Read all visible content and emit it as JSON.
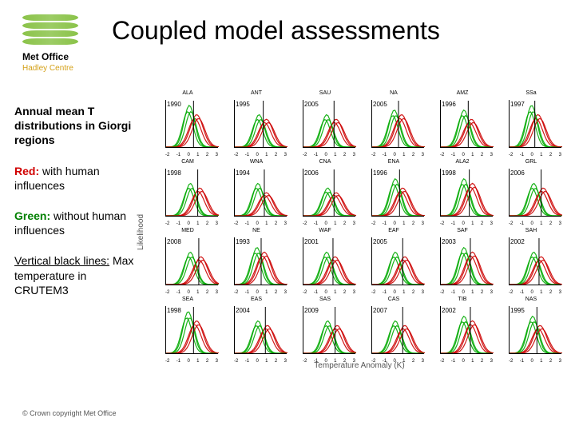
{
  "title": "Coupled model assessments",
  "logo": {
    "name": "Met Office",
    "subtitle": "Hadley Centre"
  },
  "sidebar": {
    "desc": "Annual mean T distributions in Giorgi regions",
    "red_label": "Red:",
    "red_text": " with human influences",
    "green_label": "Green:",
    "green_text": " without human influences",
    "vline_label": "Vertical black lines:",
    "vline_text": " Max temperature in CRUTEM3"
  },
  "copyright": "© Crown copyright   Met Office",
  "axes": {
    "xlabel": "Temperature Anomaly (K)",
    "ylabel": "Likelihood",
    "xticks": [
      "-2",
      "-1",
      "0",
      "1",
      "2",
      "3"
    ]
  },
  "style": {
    "red": "#cc0000",
    "green": "#00aa00",
    "vline": "#000000",
    "curve_opacity": 0.9,
    "panel_bg": "#ffffff"
  },
  "panels": [
    {
      "name": "ALA",
      "year": "1990",
      "red_mu": 0.9,
      "red_h": 0.7,
      "green_mu": 0.2,
      "green_h": 0.9,
      "vline": 0.6
    },
    {
      "name": "ANT",
      "year": "1995",
      "red_mu": 1.0,
      "red_h": 0.6,
      "green_mu": 0.3,
      "green_h": 0.7,
      "vline": 0.7
    },
    {
      "name": "SAU",
      "year": "2005",
      "red_mu": 1.1,
      "red_h": 0.6,
      "green_mu": 0.2,
      "green_h": 0.7,
      "vline": 0.9
    },
    {
      "name": "NA",
      "year": "2005",
      "red_mu": 0.8,
      "red_h": 0.7,
      "green_mu": 0.1,
      "green_h": 0.8,
      "vline": 0.5
    },
    {
      "name": "AMZ",
      "year": "1996",
      "red_mu": 0.9,
      "red_h": 0.6,
      "green_mu": 0.2,
      "green_h": 0.8,
      "vline": 0.6
    },
    {
      "name": "SSa",
      "year": "1997",
      "red_mu": 0.7,
      "red_h": 0.7,
      "green_mu": 0.1,
      "green_h": 0.9,
      "vline": 0.4
    },
    {
      "name": "CAM",
      "year": "1998",
      "red_mu": 1.2,
      "red_h": 0.6,
      "green_mu": 0.3,
      "green_h": 0.7,
      "vline": 1.0
    },
    {
      "name": "WNA",
      "year": "1994",
      "red_mu": 1.0,
      "red_h": 0.5,
      "green_mu": 0.2,
      "green_h": 0.7,
      "vline": 0.8
    },
    {
      "name": "CNA",
      "year": "2006",
      "red_mu": 1.1,
      "red_h": 0.5,
      "green_mu": 0.3,
      "green_h": 0.6,
      "vline": 0.9
    },
    {
      "name": "ENA",
      "year": "1996",
      "red_mu": 0.9,
      "red_h": 0.6,
      "green_mu": 0.2,
      "green_h": 0.8,
      "vline": 0.6
    },
    {
      "name": "ALA2",
      "year": "1998",
      "red_mu": 1.0,
      "red_h": 0.7,
      "green_mu": 0.2,
      "green_h": 0.8,
      "vline": 0.7
    },
    {
      "name": "GRL",
      "year": "2006",
      "red_mu": 1.2,
      "red_h": 0.6,
      "green_mu": 0.3,
      "green_h": 0.7,
      "vline": 1.0
    },
    {
      "name": "MED",
      "year": "2008",
      "red_mu": 1.3,
      "red_h": 0.6,
      "green_mu": 0.3,
      "green_h": 0.7,
      "vline": 1.1
    },
    {
      "name": "NE",
      "year": "1993",
      "red_mu": 0.8,
      "red_h": 0.7,
      "green_mu": 0.1,
      "green_h": 0.8,
      "vline": 0.5
    },
    {
      "name": "WAF",
      "year": "2001",
      "red_mu": 1.0,
      "red_h": 0.6,
      "green_mu": 0.2,
      "green_h": 0.7,
      "vline": 0.8
    },
    {
      "name": "EAF",
      "year": "2005",
      "red_mu": 1.1,
      "red_h": 0.6,
      "green_mu": 0.2,
      "green_h": 0.7,
      "vline": 0.9
    },
    {
      "name": "SAF",
      "year": "2003",
      "red_mu": 1.0,
      "red_h": 0.7,
      "green_mu": 0.2,
      "green_h": 0.8,
      "vline": 0.8
    },
    {
      "name": "SAH",
      "year": "2002",
      "red_mu": 1.0,
      "red_h": 0.6,
      "green_mu": 0.3,
      "green_h": 0.7,
      "vline": 0.8
    },
    {
      "name": "SEA",
      "year": "1998",
      "red_mu": 0.9,
      "red_h": 0.7,
      "green_mu": 0.1,
      "green_h": 0.9,
      "vline": 0.6
    },
    {
      "name": "EAS",
      "year": "2004",
      "red_mu": 1.1,
      "red_h": 0.6,
      "green_mu": 0.2,
      "green_h": 0.7,
      "vline": 0.9
    },
    {
      "name": "SAS",
      "year": "2009",
      "red_mu": 1.2,
      "red_h": 0.6,
      "green_mu": 0.3,
      "green_h": 0.7,
      "vline": 1.0
    },
    {
      "name": "CAS",
      "year": "2007",
      "red_mu": 1.1,
      "red_h": 0.6,
      "green_mu": 0.2,
      "green_h": 0.7,
      "vline": 0.9
    },
    {
      "name": "TIB",
      "year": "2002",
      "red_mu": 1.0,
      "red_h": 0.7,
      "green_mu": 0.2,
      "green_h": 0.8,
      "vline": 0.8
    },
    {
      "name": "NAS",
      "year": "1995",
      "red_mu": 0.9,
      "red_h": 0.6,
      "green_mu": 0.2,
      "green_h": 0.8,
      "vline": 0.6
    }
  ]
}
